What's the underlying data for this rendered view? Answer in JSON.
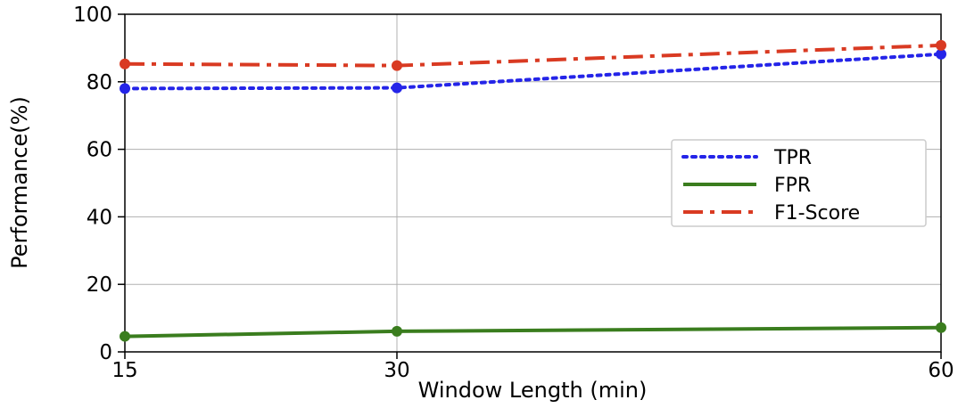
{
  "chart_data": {
    "type": "line",
    "title": "",
    "xlabel": "Window Length (min)",
    "ylabel": "Performance(%)",
    "x": [
      15,
      30,
      60
    ],
    "x_ticks": [
      "15",
      "30",
      "60"
    ],
    "y_ticks": [
      "0",
      "20",
      "40",
      "60",
      "80",
      "100"
    ],
    "xlim": [
      15,
      60
    ],
    "ylim": [
      0,
      100
    ],
    "grid": true,
    "legend_position": "center-right",
    "series": [
      {
        "name": "TPR",
        "values": [
          78,
          78.2,
          88.2
        ],
        "color": "#2424e8",
        "line_style": "dotted",
        "marker": "circle"
      },
      {
        "name": "FPR",
        "values": [
          4.6,
          6.1,
          7.2
        ],
        "color": "#3a7d1e",
        "line_style": "solid",
        "marker": "circle"
      },
      {
        "name": "F1-Score",
        "values": [
          85.3,
          84.8,
          90.8
        ],
        "color": "#d93a22",
        "line_style": "dash-dot",
        "marker": "circle"
      }
    ]
  }
}
